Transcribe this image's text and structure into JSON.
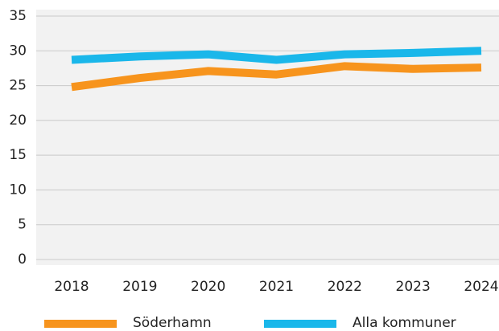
{
  "chart_data": {
    "type": "line",
    "categories": [
      "2018",
      "2019",
      "2020",
      "2021",
      "2022",
      "2023",
      "2024"
    ],
    "series": [
      {
        "name": "Söderhamn",
        "color": "#f7941d",
        "values": [
          24.8,
          26.1,
          27.1,
          26.6,
          27.8,
          27.4,
          27.6
        ]
      },
      {
        "name": "Alla kommuner",
        "color": "#1ab7ea",
        "values": [
          28.7,
          29.2,
          29.5,
          28.7,
          29.5,
          29.7,
          30.0
        ]
      }
    ],
    "ylim": [
      0,
      35
    ],
    "yticks": [
      0,
      5,
      10,
      15,
      20,
      25,
      30,
      35
    ],
    "grid": true,
    "legend": "bottom"
  }
}
